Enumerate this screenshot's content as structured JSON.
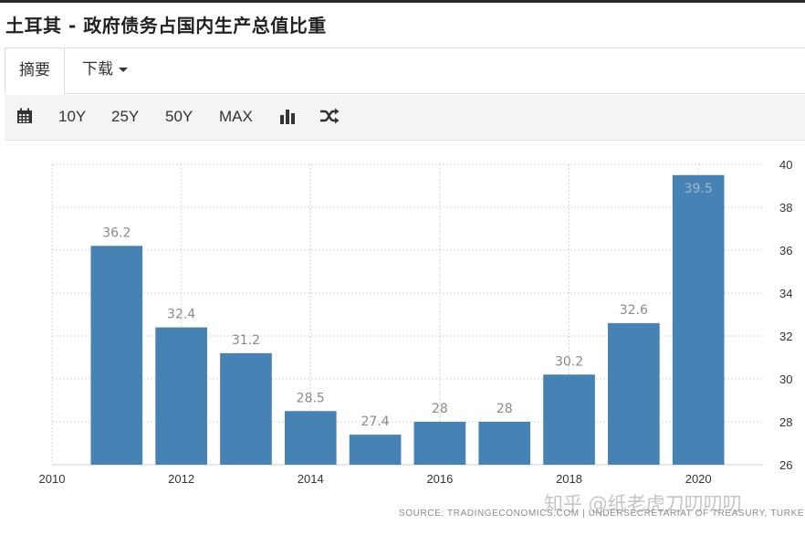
{
  "page": {
    "title": "土耳其 - 政府债务占国内生产总值比重"
  },
  "tabs": [
    {
      "label": "摘要"
    },
    {
      "label": "下载"
    }
  ],
  "toolbar": {
    "calendar_icon": "calendar-icon",
    "ranges": [
      "10Y",
      "25Y",
      "50Y",
      "MAX"
    ],
    "bar_chart_icon": "bar-chart-icon",
    "shuffle_icon": "shuffle-icon"
  },
  "chart_data": {
    "type": "bar",
    "x": [
      2011,
      2012,
      2013,
      2014,
      2015,
      2016,
      2017,
      2018,
      2019,
      2020
    ],
    "values": [
      36.2,
      32.4,
      31.2,
      28.5,
      27.4,
      28,
      28,
      30.2,
      32.6,
      39.5
    ],
    "labels": [
      "36.2",
      "32.4",
      "31.2",
      "28.5",
      "27.4",
      "28",
      "28",
      "30.2",
      "32.6",
      "39.5"
    ],
    "xticks": [
      "2010",
      "2012",
      "2014",
      "2016",
      "2018",
      "2020"
    ],
    "yticks": [
      "26",
      "28",
      "30",
      "32",
      "34",
      "36",
      "38",
      "40"
    ],
    "xlim": [
      2010,
      2021
    ],
    "ylim": [
      26,
      40
    ],
    "bar_color": "#4682b4",
    "grid": true,
    "y_axis_side": "right",
    "title": "",
    "xlabel": "",
    "ylabel": ""
  },
  "source": "SOURCE: TRADINGECONOMICS.COM | UNDERSECRETARIAT OF TREASURY, TURKEY",
  "watermark": "知乎 @纸老虎刀叨叨叨"
}
